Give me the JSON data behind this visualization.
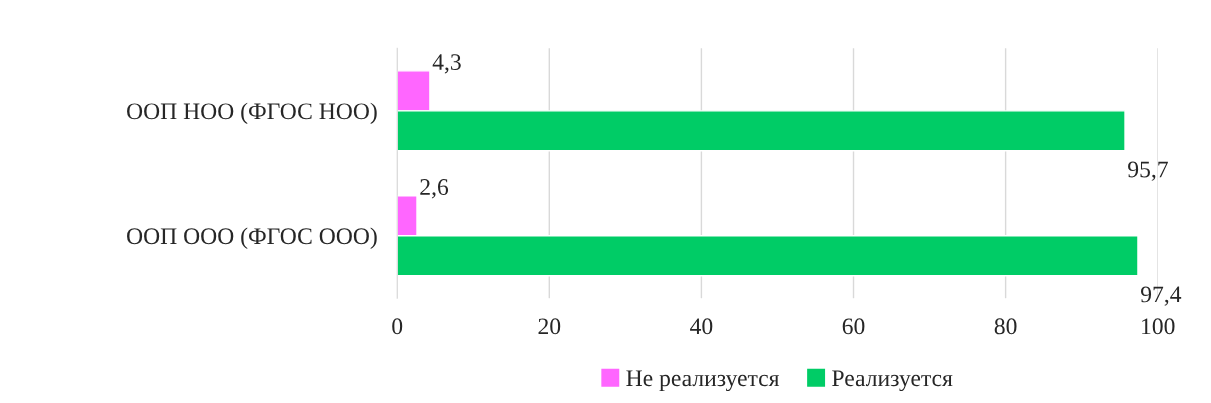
{
  "chart_data": {
    "type": "bar",
    "orientation": "horizontal",
    "categories": [
      "ООП НОО (ФГОС НОО)",
      "ООП ООО (ФГОС ООО)"
    ],
    "series": [
      {
        "name": "Не реализуется",
        "color": "#ff66ff",
        "values": [
          4.3,
          2.6
        ],
        "value_labels": [
          "4,3",
          "2,6"
        ]
      },
      {
        "name": "Реализуется",
        "color": "#00cc66",
        "values": [
          95.7,
          97.4
        ],
        "value_labels": [
          "95,7",
          "97,4"
        ]
      }
    ],
    "xlim": [
      0,
      100
    ],
    "xticks": [
      0,
      20,
      40,
      60,
      80,
      100
    ],
    "grid": "x",
    "legend": "bottom"
  }
}
